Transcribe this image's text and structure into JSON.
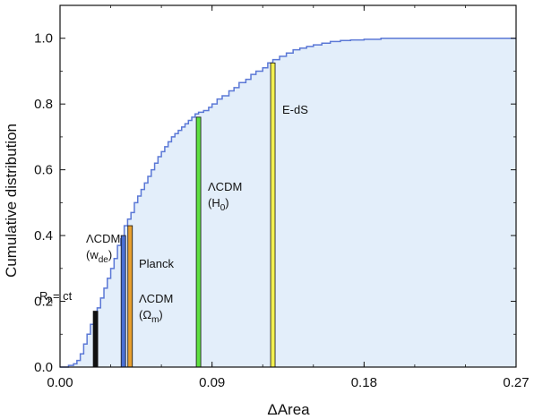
{
  "chart_data": {
    "type": "area",
    "title": "",
    "xlabel": "ΔArea",
    "ylabel": "Cumulative distribution",
    "xlim": [
      0,
      0.27
    ],
    "ylim": [
      0,
      1.1
    ],
    "xticks": [
      "0.00",
      "0.09",
      "0.18",
      "0.27"
    ],
    "yticks": [
      "0.0",
      "0.2",
      "0.4",
      "0.6",
      "0.8",
      "1.0"
    ],
    "grid": false,
    "colors": {
      "line": "#5b78d6",
      "fill": "#e3eefa"
    },
    "curve": {
      "x": [
        0.0,
        0.005,
        0.008,
        0.01,
        0.012,
        0.014,
        0.016,
        0.018,
        0.02,
        0.022,
        0.024,
        0.026,
        0.028,
        0.03,
        0.032,
        0.034,
        0.036,
        0.038,
        0.04,
        0.042,
        0.044,
        0.046,
        0.048,
        0.05,
        0.052,
        0.054,
        0.056,
        0.058,
        0.06,
        0.062,
        0.064,
        0.066,
        0.068,
        0.07,
        0.072,
        0.074,
        0.076,
        0.078,
        0.08,
        0.082,
        0.085,
        0.088,
        0.09,
        0.093,
        0.096,
        0.1,
        0.103,
        0.106,
        0.11,
        0.113,
        0.116,
        0.12,
        0.123,
        0.126,
        0.13,
        0.134,
        0.138,
        0.142,
        0.146,
        0.15,
        0.155,
        0.16,
        0.166,
        0.172,
        0.18,
        0.19,
        0.2,
        0.215,
        0.23,
        0.25,
        0.27
      ],
      "y": [
        0.0,
        0.005,
        0.01,
        0.02,
        0.04,
        0.07,
        0.1,
        0.13,
        0.16,
        0.18,
        0.21,
        0.24,
        0.27,
        0.3,
        0.33,
        0.37,
        0.39,
        0.43,
        0.45,
        0.47,
        0.5,
        0.52,
        0.54,
        0.56,
        0.58,
        0.6,
        0.62,
        0.64,
        0.655,
        0.67,
        0.685,
        0.7,
        0.71,
        0.72,
        0.73,
        0.74,
        0.75,
        0.76,
        0.77,
        0.775,
        0.78,
        0.79,
        0.8,
        0.815,
        0.825,
        0.84,
        0.85,
        0.865,
        0.875,
        0.89,
        0.9,
        0.91,
        0.925,
        0.935,
        0.945,
        0.955,
        0.965,
        0.97,
        0.975,
        0.98,
        0.985,
        0.99,
        0.993,
        0.995,
        0.997,
        1.0,
        1.0,
        1.0,
        1.0,
        1.0,
        1.0
      ]
    },
    "markers": [
      {
        "name": "R_h=ct",
        "x": 0.021,
        "y": 0.17,
        "color": "#111111"
      },
      {
        "name": "ΛCDM (Ωm)",
        "x": 0.0375,
        "y": 0.4,
        "color": "#4a6fd4"
      },
      {
        "name": "Planck",
        "x": 0.0415,
        "y": 0.43,
        "color": "#e8a030"
      },
      {
        "name": "ΛCDM (H0)",
        "x": 0.082,
        "y": 0.76,
        "color": "#5ee040"
      },
      {
        "name": "E-dS",
        "x": 0.126,
        "y": 0.925,
        "color": "#f2ef50"
      }
    ],
    "annotations": {
      "rh": {
        "main": "R",
        "sub": "h",
        "rest": "= ct"
      },
      "lcdm_wde": {
        "line1": "ΛCDM",
        "open": "(w",
        "sub": "de",
        "close": ")"
      },
      "planck": "Planck",
      "lcdm_om": {
        "line1": "ΛCDM",
        "open": "(Ω",
        "sub": "m",
        "close": ")"
      },
      "lcdm_h0": {
        "line1": "ΛCDM",
        "open": "(H",
        "sub": "0",
        "close": ")"
      },
      "eds": "E-dS"
    }
  }
}
